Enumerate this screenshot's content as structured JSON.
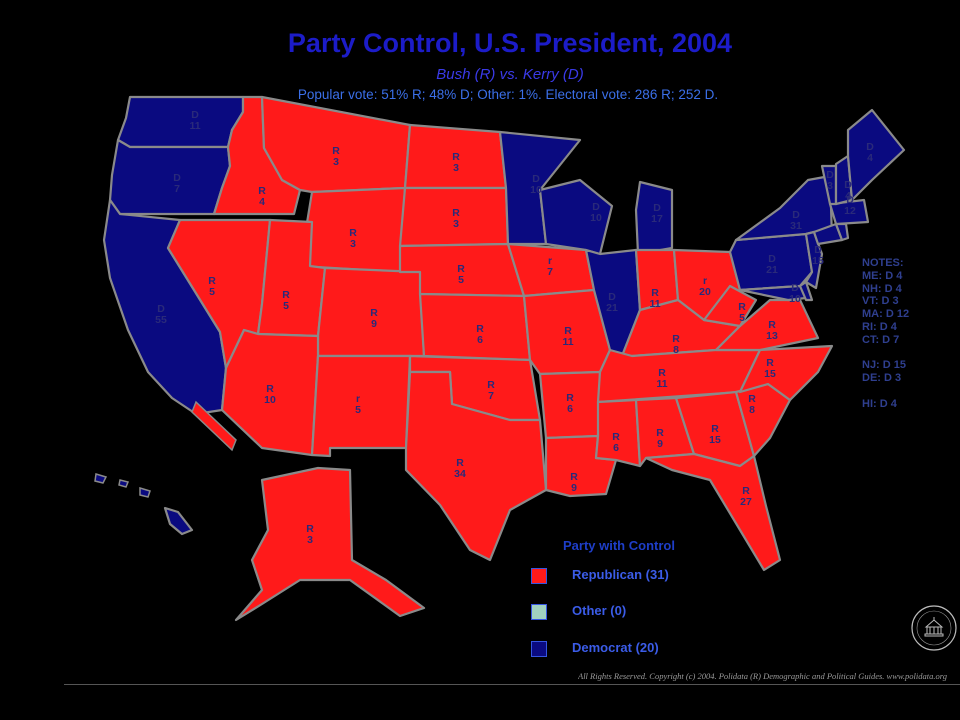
{
  "title": "Party Control, U.S. President, 2004",
  "subtitle": "Bush (R) vs. Kerry (D)",
  "summary": "Popular vote: 51% R; 48% D; Other: 1%. Electoral vote: 286 R; 252 D.",
  "colors": {
    "republican": "#ff1a1a",
    "democrat": "#0a0a80",
    "other": "#a0d0c0",
    "border": "#8a8a8a",
    "background": "#000000"
  },
  "notes": [
    "NOTES:",
    "ME: D 4",
    "NH: D 4",
    "VT: D 3",
    "MA: D 12",
    "RI: D 4",
    "CT: D 7",
    "",
    "NJ: D 15",
    "DE: D 3",
    "",
    "HI: D 4"
  ],
  "legend": {
    "title": "Party with Control",
    "items": [
      {
        "label": "Republican (31)",
        "color": "#ff1a1a"
      },
      {
        "label": "Other (0)",
        "color": "#a0d0c0"
      },
      {
        "label": "Democrat (20)",
        "color": "#0a0a80"
      }
    ]
  },
  "states": [
    {
      "id": "WA",
      "party": "D",
      "line1": "D",
      "line2": "11"
    },
    {
      "id": "OR",
      "party": "D",
      "line1": "D",
      "line2": "7"
    },
    {
      "id": "CA",
      "party": "D",
      "line1": "D",
      "line2": "55"
    },
    {
      "id": "ID",
      "party": "R",
      "line1": "R",
      "line2": "4"
    },
    {
      "id": "NV",
      "party": "R",
      "line1": "R",
      "line2": "5"
    },
    {
      "id": "MT",
      "party": "R",
      "line1": "R",
      "line2": "3"
    },
    {
      "id": "WY",
      "party": "R",
      "line1": "R",
      "line2": "3"
    },
    {
      "id": "UT",
      "party": "R",
      "line1": "R",
      "line2": "5"
    },
    {
      "id": "CO",
      "party": "R",
      "line1": "R",
      "line2": "9"
    },
    {
      "id": "AZ",
      "party": "R",
      "line1": "R",
      "line2": "10"
    },
    {
      "id": "NM",
      "party": "R",
      "line1": "r",
      "line2": "5"
    },
    {
      "id": "ND",
      "party": "R",
      "line1": "R",
      "line2": "3"
    },
    {
      "id": "SD",
      "party": "R",
      "line1": "R",
      "line2": "3"
    },
    {
      "id": "NE",
      "party": "R",
      "line1": "R",
      "line2": "5"
    },
    {
      "id": "KS",
      "party": "R",
      "line1": "R",
      "line2": "6"
    },
    {
      "id": "OK",
      "party": "R",
      "line1": "R",
      "line2": "7"
    },
    {
      "id": "TX",
      "party": "R",
      "line1": "R",
      "line2": "34"
    },
    {
      "id": "MN",
      "party": "D",
      "line1": "D",
      "line2": "10"
    },
    {
      "id": "IA",
      "party": "R",
      "line1": "r",
      "line2": "7"
    },
    {
      "id": "MO",
      "party": "R",
      "line1": "R",
      "line2": "11"
    },
    {
      "id": "AR",
      "party": "R",
      "line1": "R",
      "line2": "6"
    },
    {
      "id": "LA",
      "party": "R",
      "line1": "R",
      "line2": "9"
    },
    {
      "id": "WI",
      "party": "D",
      "line1": "D",
      "line2": "10"
    },
    {
      "id": "IL",
      "party": "D",
      "line1": "D",
      "line2": "21"
    },
    {
      "id": "MI",
      "party": "D",
      "line1": "D",
      "line2": "17"
    },
    {
      "id": "IN",
      "party": "R",
      "line1": "R",
      "line2": "11"
    },
    {
      "id": "OH",
      "party": "R",
      "line1": "r",
      "line2": "20"
    },
    {
      "id": "KY",
      "party": "R",
      "line1": "R",
      "line2": "8"
    },
    {
      "id": "TN",
      "party": "R",
      "line1": "R",
      "line2": "11"
    },
    {
      "id": "MS",
      "party": "R",
      "line1": "R",
      "line2": "6"
    },
    {
      "id": "AL",
      "party": "R",
      "line1": "R",
      "line2": "9"
    },
    {
      "id": "GA",
      "party": "R",
      "line1": "R",
      "line2": "15"
    },
    {
      "id": "FL",
      "party": "R",
      "line1": "R",
      "line2": "27"
    },
    {
      "id": "SC",
      "party": "R",
      "line1": "R",
      "line2": "8"
    },
    {
      "id": "NC",
      "party": "R",
      "line1": "R",
      "line2": "15"
    },
    {
      "id": "VA",
      "party": "R",
      "line1": "R",
      "line2": "13"
    },
    {
      "id": "WV",
      "party": "R",
      "line1": "R",
      "line2": "5"
    },
    {
      "id": "PA",
      "party": "D",
      "line1": "D",
      "line2": "21"
    },
    {
      "id": "NY",
      "party": "D",
      "line1": "D",
      "line2": "31"
    },
    {
      "id": "MD",
      "party": "D",
      "line1": "D",
      "line2": "10"
    },
    {
      "id": "NJ",
      "party": "D",
      "line1": "D",
      "line2": "15"
    },
    {
      "id": "DE",
      "party": "D",
      "line1": "",
      "line2": ""
    },
    {
      "id": "CT",
      "party": "D",
      "line1": "",
      "line2": ""
    },
    {
      "id": "RI",
      "party": "D",
      "line1": "",
      "line2": ""
    },
    {
      "id": "MA",
      "party": "D",
      "line1": "D",
      "line2": "12"
    },
    {
      "id": "VT",
      "party": "D",
      "line1": "D",
      "line2": "3"
    },
    {
      "id": "NH",
      "party": "D",
      "line1": "D",
      "line2": "4"
    },
    {
      "id": "ME",
      "party": "D",
      "line1": "D",
      "line2": "4"
    },
    {
      "id": "AK",
      "party": "R",
      "line1": "R",
      "line2": "3"
    },
    {
      "id": "HI",
      "party": "D",
      "line1": "",
      "line2": ""
    }
  ],
  "copyright": "All Rights Reserved. Copyright (c) 2004. Polidata (R) Demographic and Political Guides. www.polidata.org",
  "seal_text": "POLIDATA"
}
